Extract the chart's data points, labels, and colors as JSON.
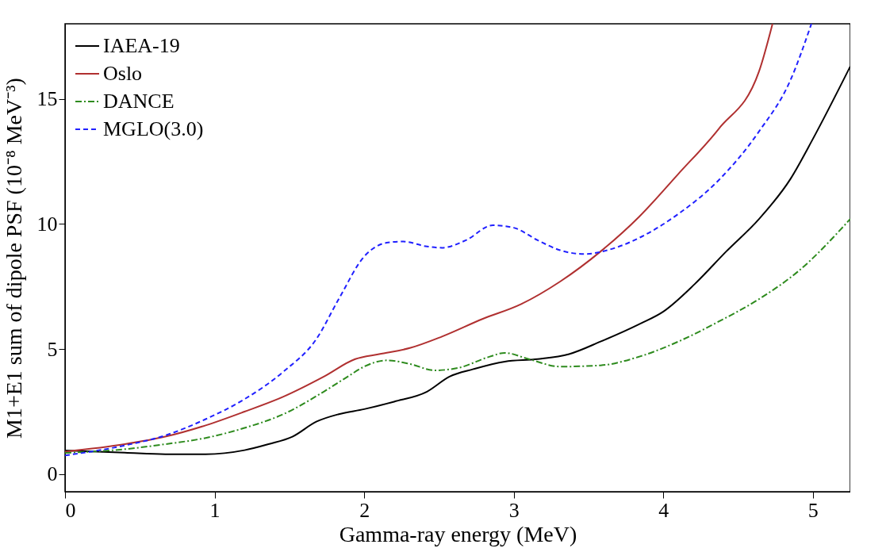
{
  "chart_data": {
    "type": "line",
    "xlabel": "Gamma-ray energy (MeV)",
    "ylabel": "M1+E1 sum of dipole PSF (10⁻⁸ MeV⁻³)",
    "xlim": [
      0,
      5.25
    ],
    "ylim": [
      -0.7,
      18
    ],
    "xticks": [
      0,
      1,
      2,
      3,
      4,
      5
    ],
    "yticks": [
      0,
      5,
      10,
      15
    ],
    "grid": false,
    "legend": "top left",
    "series": [
      {
        "name": "IAEA-19",
        "color": "#000000",
        "line_style": "solid",
        "x": [
          0,
          0.4,
          0.67,
          0.94,
          1.2,
          1.36,
          1.52,
          1.68,
          1.83,
          2.0,
          2.2,
          2.42,
          2.57,
          2.73,
          2.94,
          3.16,
          3.37,
          3.58,
          3.84,
          4.0,
          4.21,
          4.42,
          4.64,
          4.85,
          5.0,
          5.25
        ],
        "values": [
          0.95,
          0.86,
          0.8,
          0.8,
          0.96,
          1.2,
          1.5,
          2.1,
          2.4,
          2.6,
          2.9,
          3.3,
          3.9,
          4.2,
          4.5,
          4.6,
          4.8,
          5.3,
          6.0,
          6.5,
          7.6,
          8.9,
          10.2,
          11.8,
          13.4,
          16.3
        ]
      },
      {
        "name": "Oslo",
        "color": "#b03030",
        "line_style": "solid",
        "x": [
          0,
          0.4,
          0.67,
          0.94,
          1.2,
          1.46,
          1.73,
          1.94,
          2.1,
          2.31,
          2.52,
          2.79,
          3.05,
          3.31,
          3.58,
          3.84,
          4.1,
          4.37,
          4.64,
          4.73
        ],
        "values": [
          0.9,
          1.2,
          1.5,
          1.95,
          2.5,
          3.1,
          3.9,
          4.6,
          4.8,
          5.05,
          5.5,
          6.2,
          6.8,
          7.7,
          8.9,
          10.3,
          12.0,
          13.8,
          16.1,
          18
        ]
      },
      {
        "name": "DANCE",
        "color": "#2e8b1e",
        "line_style": "dashdot",
        "x": [
          0,
          0.4,
          0.67,
          0.94,
          1.2,
          1.46,
          1.73,
          1.89,
          2.0,
          2.15,
          2.31,
          2.47,
          2.63,
          2.84,
          2.94,
          3.1,
          3.31,
          3.58,
          3.84,
          4.1,
          4.37,
          4.64,
          4.9,
          5.25
        ],
        "values": [
          0.85,
          1.0,
          1.2,
          1.45,
          1.85,
          2.4,
          3.3,
          3.9,
          4.3,
          4.55,
          4.4,
          4.15,
          4.25,
          4.7,
          4.85,
          4.6,
          4.3,
          4.35,
          4.7,
          5.3,
          6.1,
          7.0,
          8.1,
          10.2
        ]
      },
      {
        "name": "MGLO(3.0)",
        "color": "#2020ff",
        "line_style": "dashed",
        "x": [
          0,
          0.4,
          0.67,
          0.94,
          1.2,
          1.46,
          1.68,
          1.83,
          2.0,
          2.15,
          2.26,
          2.42,
          2.52,
          2.68,
          2.86,
          3.0,
          3.16,
          3.31,
          3.47,
          3.68,
          3.84,
          4.1,
          4.37,
          4.64,
          4.85,
          4.99
        ],
        "values": [
          0.75,
          1.15,
          1.55,
          2.2,
          3.0,
          4.1,
          5.4,
          7.0,
          8.7,
          9.25,
          9.3,
          9.1,
          9.05,
          9.35,
          9.95,
          9.85,
          9.35,
          8.95,
          8.8,
          9.05,
          9.45,
          10.4,
          11.75,
          13.7,
          15.75,
          18
        ]
      }
    ]
  }
}
